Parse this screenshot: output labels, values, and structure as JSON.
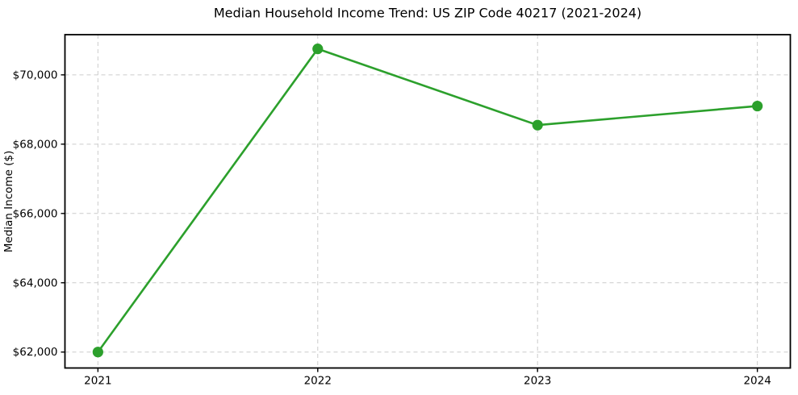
{
  "figure": {
    "background_color": "#ffffff"
  },
  "chart_data": {
    "type": "line",
    "title": "Median Household Income Trend: US ZIP Code 40217 (2021-2024)",
    "xlabel": "",
    "ylabel": "Median Income ($)",
    "x": [
      2021,
      2022,
      2023,
      2024
    ],
    "values": [
      62000,
      70750,
      68550,
      69100
    ],
    "xticklabels": [
      "2021",
      "2022",
      "2023",
      "2024"
    ],
    "yticks": [
      62000,
      64000,
      66000,
      68000,
      70000
    ],
    "yticklabels": [
      "$62,000",
      "$64,000",
      "$66,000",
      "$68,000",
      "$70,000"
    ],
    "xlim": [
      2020.85,
      2024.15
    ],
    "ylim": [
      61540,
      71160
    ],
    "grid": true,
    "grid_style": "dashed",
    "grid_color": "#cccccc",
    "line_color": "#2ca02c",
    "marker": "o",
    "spine_color": "#000000",
    "tick_color": "#000000",
    "legend_position": "none"
  }
}
